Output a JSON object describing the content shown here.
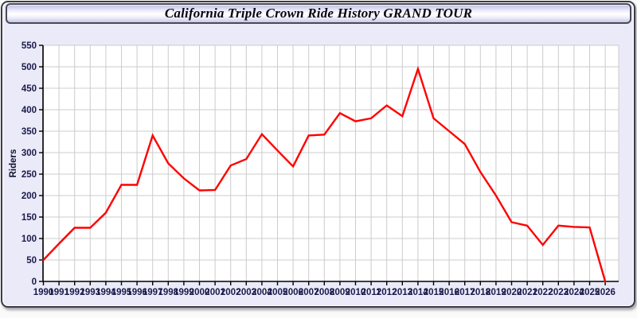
{
  "title": "California Triple Crown Ride History GRAND TOUR",
  "chart_data": {
    "type": "line",
    "title": "California Triple Crown Ride History GRAND TOUR",
    "xlabel": "",
    "ylabel": "Riders",
    "ylim": [
      0,
      550
    ],
    "ytick_step": 50,
    "grid": true,
    "legend": "none",
    "x": [
      1990,
      1991,
      1992,
      1993,
      1994,
      1995,
      1996,
      1997,
      1998,
      1999,
      2000,
      2001,
      2002,
      2003,
      2004,
      2005,
      2006,
      2007,
      2008,
      2009,
      2010,
      2011,
      2012,
      2013,
      2014,
      2015,
      2016,
      2017,
      2018,
      2019,
      2020,
      2021,
      2022,
      2023,
      2024,
      2025,
      2026
    ],
    "series": [
      {
        "name": "Riders",
        "values": [
          50,
          88,
          125,
          125,
          160,
          225,
          225,
          340,
          275,
          240,
          212,
          213,
          270,
          285,
          343,
          305,
          268,
          340,
          342,
          392,
          373,
          380,
          410,
          385,
          495,
          380,
          350,
          320,
          255,
          200,
          138,
          130,
          85,
          130,
          127,
          126,
          0
        ]
      }
    ],
    "colors": {
      "line": "#ff0000",
      "grid": "#cccccc",
      "axis": "#000000",
      "labels": "#1a1a4a",
      "plot_bg": "#ffffff"
    }
  },
  "panel": {
    "bg": "#eaeaf8"
  }
}
